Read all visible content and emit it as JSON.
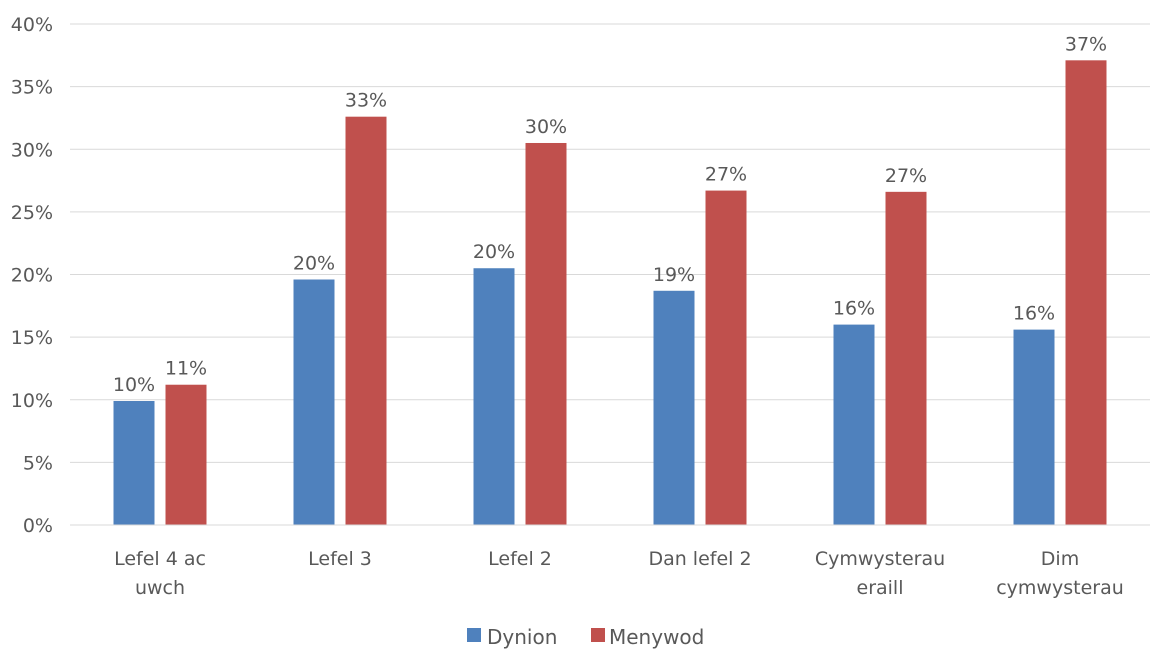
{
  "chart_data": {
    "type": "bar",
    "title": "",
    "xlabel": "",
    "ylabel": "",
    "ylim": [
      0,
      40
    ],
    "ytick_step": 5,
    "ytick_labels": [
      "0%",
      "5%",
      "10%",
      "15%",
      "20%",
      "25%",
      "30%",
      "35%",
      "40%"
    ],
    "grid": true,
    "legend_position": "bottom",
    "categories": [
      [
        "Lefel 4 ac",
        "uwch"
      ],
      [
        "Lefel 3"
      ],
      [
        "Lefel 2"
      ],
      [
        "Dan lefel 2"
      ],
      [
        "Cymwysterau",
        "eraill"
      ],
      [
        "Dim",
        "cymwysterau"
      ]
    ],
    "series": [
      {
        "name": "Dynion",
        "color": "#4F81BD",
        "values": [
          9.9,
          19.6,
          20.5,
          18.7,
          16.0,
          15.6
        ],
        "labels": [
          "10%",
          "20%",
          "20%",
          "19%",
          "16%",
          "16%"
        ]
      },
      {
        "name": "Menywod",
        "color": "#C0504D",
        "values": [
          11.2,
          32.6,
          30.5,
          26.7,
          26.6,
          37.1
        ],
        "labels": [
          "11%",
          "33%",
          "30%",
          "27%",
          "27%",
          "37%"
        ]
      }
    ]
  }
}
